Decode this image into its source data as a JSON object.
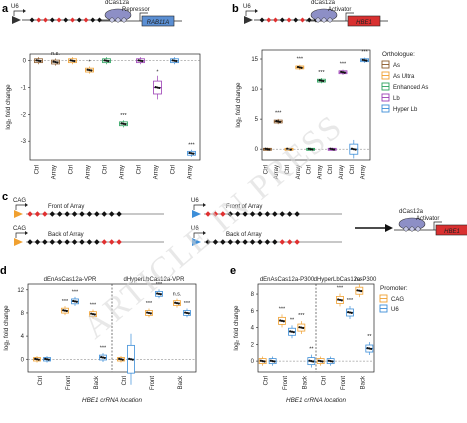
{
  "figure": {
    "watermark": "ARTICLE IN PRESS",
    "panel_labels": {
      "a": "a",
      "b": "b",
      "c": "c",
      "d": "d",
      "e": "e"
    },
    "colors": {
      "As": "#8c5a2a",
      "As Ultra": "#f0a030",
      "Enhanced As": "#2ca25f",
      "Lb": "#9b3fb5",
      "Hyper Lb": "#3d8ed8",
      "CAG": "#f0a030",
      "U6": "#3d8ed8",
      "array_red": "#e03030",
      "array_black": "#111111",
      "dcas_fill": "#8d8fc6",
      "gene_red": "#d93030",
      "gene_blue": "#5b8fd3"
    },
    "schematic_a": {
      "promoter": "U6",
      "protein": "dCas12a",
      "effector": "Repressor",
      "gene": "RAB11A"
    },
    "schematic_b": {
      "promoter": "U6",
      "protein": "dCas12a",
      "effector": "Activator",
      "gene": "HBE1"
    },
    "schematic_c": {
      "constructs": [
        {
          "promoter": "CAG",
          "label": "Front of Array"
        },
        {
          "promoter": "U6",
          "label": "Front of Array"
        },
        {
          "promoter": "CAG",
          "label": "Back of Array"
        },
        {
          "promoter": "U6",
          "label": "Back of Array"
        }
      ],
      "target": {
        "protein": "dCas12a",
        "effector": "Activator",
        "gene": "HBE1"
      }
    },
    "legend_b": {
      "title": "Orthologue:",
      "items": [
        "As",
        "As Ultra",
        "Enhanced As",
        "Lb",
        "Hyper Lb"
      ]
    },
    "legend_e": {
      "title": "Promoter:",
      "items": [
        "CAG",
        "U6"
      ]
    }
  },
  "chart_data": [
    {
      "panel": "a",
      "type": "box",
      "ylabel": "log₂ fold change",
      "ylim": [
        -3.7,
        0.25
      ],
      "yticks": [
        -3,
        -2,
        -1,
        0
      ],
      "categories": [
        "Ctrl",
        "Array",
        "Ctrl",
        "Array",
        "Ctrl",
        "Array",
        "Ctrl",
        "Array",
        "Ctrl",
        "Array"
      ],
      "groups": [
        {
          "series": "As",
          "ctrl_median": 0.0,
          "array_median": -0.05,
          "array_sig": "n.s."
        },
        {
          "series": "As Ultra",
          "ctrl_median": 0.0,
          "array_median": -0.35,
          "array_sig": "*"
        },
        {
          "series": "Enhanced As",
          "ctrl_median": 0.0,
          "array_median": -2.35,
          "array_sig": "***"
        },
        {
          "series": "Lb",
          "ctrl_median": 0.0,
          "array_median": -1.0,
          "array_sig": "*"
        },
        {
          "series": "Hyper Lb",
          "ctrl_median": 0.0,
          "array_median": -3.45,
          "array_sig": "***"
        }
      ]
    },
    {
      "panel": "b",
      "type": "box",
      "ylabel": "log₂ fold change",
      "ylim": [
        -1.8,
        16.5
      ],
      "yticks": [
        0,
        5,
        10,
        15
      ],
      "categories": [
        "Ctrl",
        "Array",
        "Ctrl",
        "Array",
        "Ctrl",
        "Array",
        "Ctrl",
        "Array",
        "Ctrl",
        "Array"
      ],
      "groups": [
        {
          "series": "As",
          "ctrl_median": 0.0,
          "array_median": 4.6,
          "array_sig": "***"
        },
        {
          "series": "As Ultra",
          "ctrl_median": 0.0,
          "array_median": 13.6,
          "array_sig": "***"
        },
        {
          "series": "Enhanced As",
          "ctrl_median": 0.0,
          "array_median": 11.4,
          "array_sig": "***"
        },
        {
          "series": "Lb",
          "ctrl_median": 0.0,
          "array_median": 12.8,
          "array_sig": "***"
        },
        {
          "series": "Hyper Lb",
          "ctrl_median": 0.0,
          "array_median": 14.8,
          "array_sig": "***"
        }
      ]
    },
    {
      "panel": "d",
      "type": "box",
      "xlabel": "HBE1 crRNA location",
      "ylabel": "log₂ fold change",
      "ylim": [
        -2.2,
        13.0
      ],
      "yticks": [
        0,
        4,
        8,
        12
      ],
      "subtitles": [
        "dEnAsCas12a-VPR",
        "dHyperLbCas12a-VPR"
      ],
      "categories": [
        "Ctrl",
        "Front",
        "Back"
      ],
      "series": [
        {
          "name": "CAG",
          "values": [
            0.0,
            8.4,
            7.8,
            0.0,
            8.0,
            9.7
          ]
        },
        {
          "name": "U6",
          "values": [
            0.0,
            10.0,
            0.3,
            0.0,
            11.3,
            8.0
          ]
        }
      ],
      "significance": [
        "",
        "***",
        "***",
        "",
        "***",
        "***",
        "",
        "***",
        "n.s.",
        "",
        "***",
        "***"
      ]
    },
    {
      "panel": "e",
      "type": "box",
      "xlabel": "HBE1 crRNA location",
      "ylabel": "log₂ fold change",
      "ylim": [
        -1.3,
        9.2
      ],
      "yticks": [
        0,
        2,
        4,
        6,
        8
      ],
      "subtitles": [
        "dEnAsCas12a-P300",
        "dHyperLbCas12a-P300"
      ],
      "categories": [
        "Ctrl",
        "Front",
        "Back"
      ],
      "series": [
        {
          "name": "CAG",
          "values": [
            0.0,
            4.8,
            4.0,
            0.0,
            7.3,
            8.4
          ]
        },
        {
          "name": "U6",
          "values": [
            0.0,
            3.5,
            0.0,
            0.0,
            5.8,
            1.5
          ]
        }
      ],
      "significance": [
        "",
        "***",
        "***",
        "",
        "**",
        "**",
        "",
        "***",
        "n.s.",
        "",
        "***",
        "**"
      ]
    }
  ]
}
